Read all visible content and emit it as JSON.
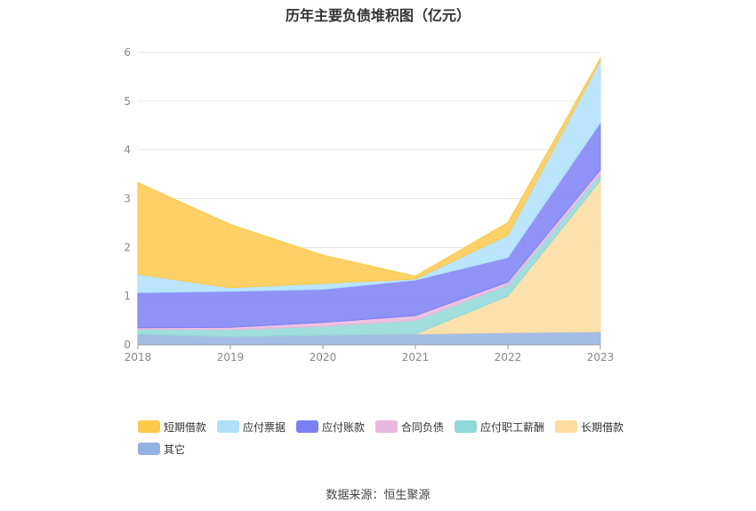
{
  "chart_data": {
    "type": "area",
    "stacked": true,
    "title": "历年主要负债堆积图（亿元）",
    "categories": [
      "2018",
      "2019",
      "2020",
      "2021",
      "2022",
      "2023"
    ],
    "ylim": [
      0,
      6
    ],
    "yticks": [
      "0",
      "1",
      "2",
      "3",
      "4",
      "5",
      "6"
    ],
    "grid": true,
    "legend_position": "bottom",
    "series": [
      {
        "name": "其它",
        "color": "#94b2e0",
        "values": [
          0.22,
          0.17,
          0.2,
          0.22,
          0.25,
          0.27
        ]
      },
      {
        "name": "长期借款",
        "color": "#fddc9e",
        "values": [
          0,
          0,
          0,
          0,
          0.75,
          3.1
        ]
      },
      {
        "name": "应付职工薪酬",
        "color": "#8fd8d8",
        "values": [
          0.1,
          0.14,
          0.18,
          0.28,
          0.23,
          0.13
        ]
      },
      {
        "name": "合同负债",
        "color": "#e9b6dd",
        "values": [
          0.03,
          0.05,
          0.08,
          0.1,
          0.06,
          0.09
        ]
      },
      {
        "name": "应付账款",
        "color": "#7c80f5",
        "values": [
          0.72,
          0.74,
          0.68,
          0.73,
          0.5,
          0.97
        ]
      },
      {
        "name": "应付票据",
        "color": "#aee0fb",
        "values": [
          0.38,
          0.07,
          0.12,
          0.02,
          0.46,
          1.27
        ]
      },
      {
        "name": "短期借款",
        "color": "#fdc94a",
        "values": [
          1.88,
          1.3,
          0.58,
          0.06,
          0.26,
          0.05
        ]
      }
    ]
  },
  "legend": {
    "items": [
      {
        "label": "短期借款",
        "color": "#fdc94a"
      },
      {
        "label": "应付票据",
        "color": "#aee0fb"
      },
      {
        "label": "应付账款",
        "color": "#7c80f5"
      },
      {
        "label": "合同负债",
        "color": "#e9b6dd"
      },
      {
        "label": "应付职工薪酬",
        "color": "#8fd8d8"
      },
      {
        "label": "长期借款",
        "color": "#fddc9e"
      },
      {
        "label": "其它",
        "color": "#94b2e0"
      }
    ]
  },
  "footer": {
    "source": "数据来源：恒生聚源"
  }
}
